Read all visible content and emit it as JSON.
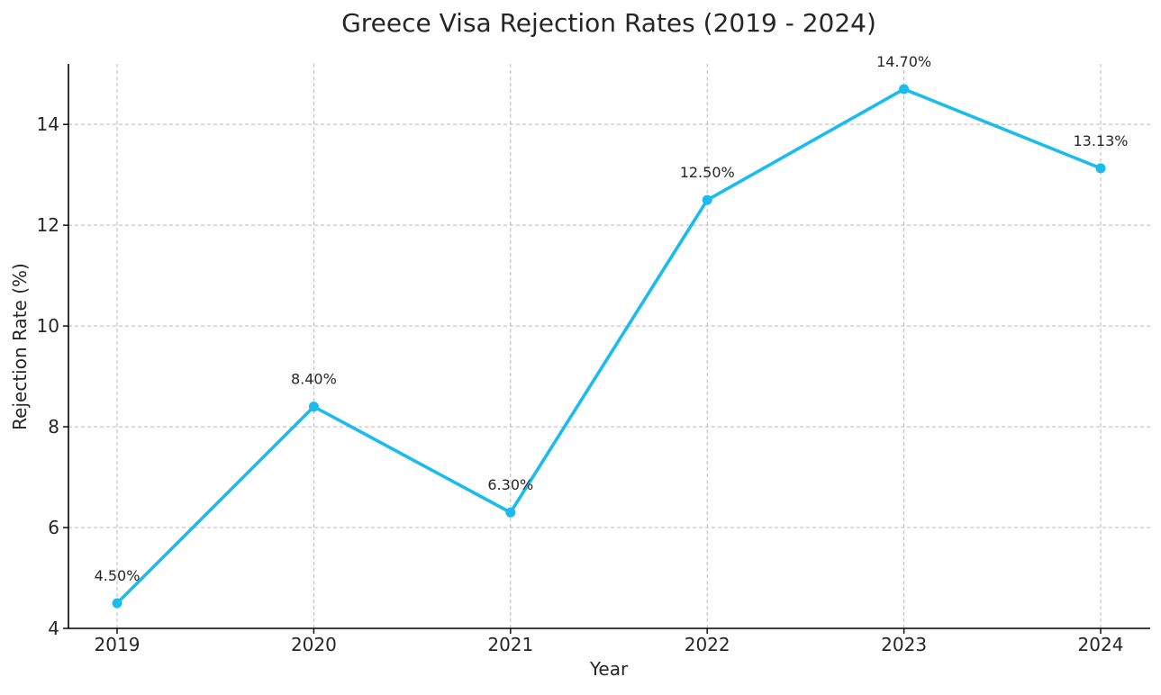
{
  "chart_data": {
    "type": "line",
    "title": "Greece Visa Rejection Rates (2019 - 2024)",
    "xlabel": "Year",
    "ylabel": "Rejection Rate (%)",
    "categories": [
      "2019",
      "2020",
      "2021",
      "2022",
      "2023",
      "2024"
    ],
    "series": [
      {
        "values": [
          4.5,
          8.4,
          6.3,
          12.5,
          14.7,
          13.13
        ],
        "color": "#1abcf0"
      }
    ],
    "data_labels": [
      "4.50%",
      "8.40%",
      "6.30%",
      "12.50%",
      "14.70%",
      "13.13%"
    ],
    "ylim": [
      4,
      15.2
    ],
    "yticks": [
      4,
      6,
      8,
      10,
      12,
      14
    ],
    "grid": true,
    "markers": "circle"
  }
}
